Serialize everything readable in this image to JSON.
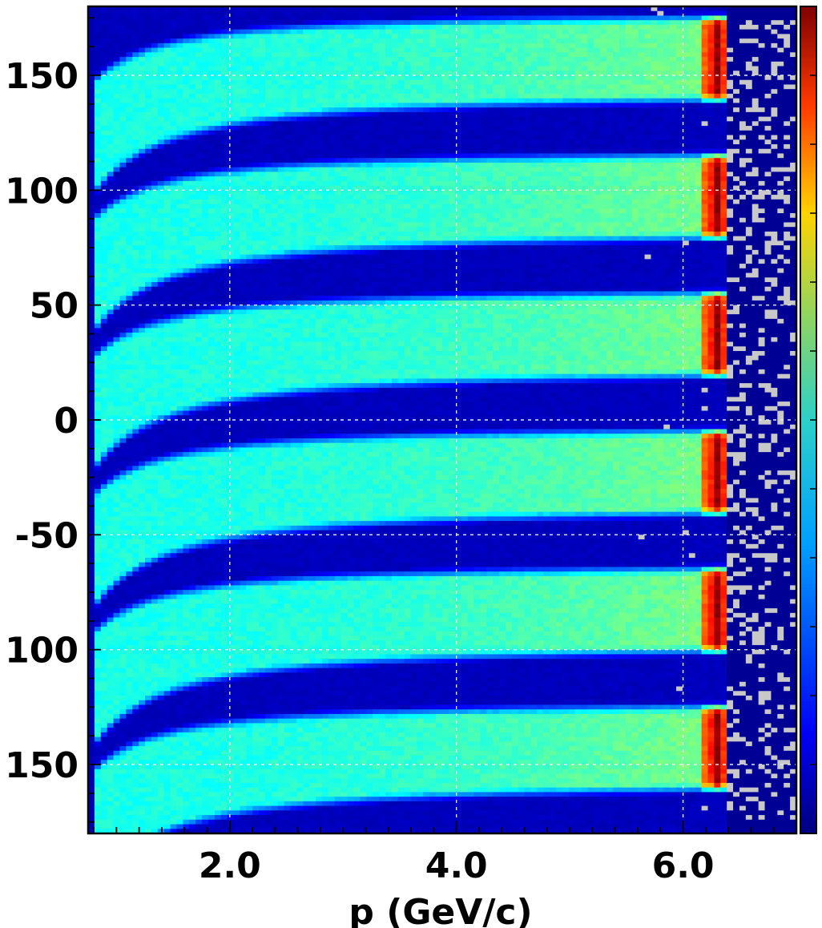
{
  "chart_data": {
    "type": "heatmap",
    "title": "",
    "xlabel": "p (GeV/c)",
    "ylabel": "",
    "x_ticks": [
      {
        "value": 2.0,
        "label": "2.0"
      },
      {
        "value": 4.0,
        "label": "4.0"
      },
      {
        "value": 6.0,
        "label": "6.0"
      }
    ],
    "y_ticks": [
      {
        "value": 150,
        "label": "150"
      },
      {
        "value": 100,
        "label": "100"
      },
      {
        "value": 50,
        "label": "50"
      },
      {
        "value": 0,
        "label": "0"
      },
      {
        "value": -50,
        "label": "-50"
      },
      {
        "value": -100,
        "label": "100"
      },
      {
        "value": -150,
        "label": "150"
      }
    ],
    "xlim": [
      0.75,
      7.0
    ],
    "ylim": [
      -180,
      180
    ],
    "grid": true,
    "colormap": "jet",
    "colorbar": true,
    "empty_bin_color": "#c8c8c8",
    "bands": [
      {
        "y_center": 160
      },
      {
        "y_center": 100
      },
      {
        "y_center": 40
      },
      {
        "y_center": -20
      },
      {
        "y_center": -80
      },
      {
        "y_center": -140
      }
    ],
    "peak_momentum": 6.3,
    "max_momentum": 6.4
  }
}
